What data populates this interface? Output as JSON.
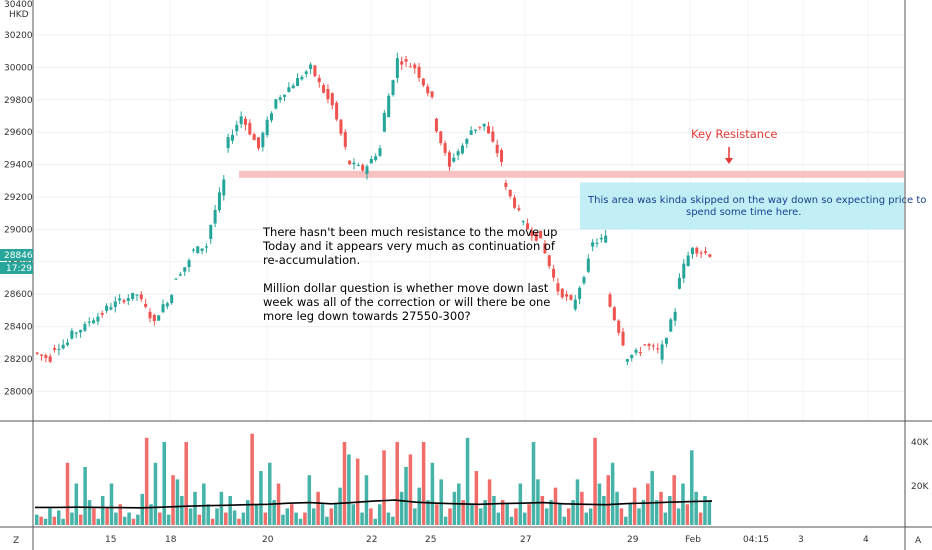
{
  "chart_data": {
    "type": "candlestick",
    "price_scale": {
      "min_label": 28000,
      "max_label": 30200,
      "ticks": [
        "30200",
        "30000",
        "29800",
        "29600",
        "29400",
        "29200",
        "29000",
        "28800",
        "28600",
        "28400",
        "28200",
        "28000"
      ],
      "ylim": [
        27850,
        30300
      ]
    },
    "top_labels": [
      "30400",
      "HKD"
    ],
    "last_price": {
      "value": "28846",
      "timer": "17:29"
    },
    "volume_scale": {
      "ticks": [
        "40K",
        "20K"
      ]
    },
    "x_ticks": [
      "15",
      "18",
      "20",
      "22",
      "25",
      "27",
      "29",
      "Feb",
      "04:15",
      "3",
      "4"
    ],
    "scale_mode_labels": {
      "left": "Z",
      "right": "A"
    },
    "key_level": {
      "price": 29340,
      "label": "Key Resistance"
    },
    "zone": {
      "top": 29290,
      "bottom": 29000,
      "text": [
        "This area was kinda skipped on the way down so expecting price to",
        "spend some time here."
      ]
    },
    "commentary": [
      "There hasn't been much resistance to the move up",
      "Today and it appears very much as continuation of",
      "re-accumulation.",
      "",
      "Million dollar question is whether move down last",
      "week was all of the correction or will there be one",
      "more leg down towards 27550-300?"
    ],
    "price_path": [
      [
        28240,
        28200
      ],
      [
        28260,
        28300
      ],
      [
        28340,
        28400
      ],
      [
        28420,
        28480
      ],
      [
        28500,
        28560
      ],
      [
        28560,
        28600
      ],
      [
        28600,
        28420
      ],
      [
        28450,
        28600
      ],
      [
        28680,
        28800
      ],
      [
        28860,
        28900
      ],
      [
        28940,
        29300
      ],
      [
        29500,
        29700
      ],
      [
        29700,
        29500
      ],
      [
        29520,
        29800
      ],
      [
        29800,
        29900
      ],
      [
        29900,
        30000
      ],
      [
        30000,
        29800
      ],
      [
        29850,
        29500
      ],
      [
        29420,
        29370
      ],
      [
        29360,
        29500
      ],
      [
        29600,
        30050
      ],
      [
        30050,
        30000
      ],
      [
        30000,
        29800
      ],
      [
        29700,
        29380
      ],
      [
        29420,
        29550
      ],
      [
        29600,
        29650
      ],
      [
        29640,
        29420
      ],
      [
        29300,
        29100
      ],
      [
        29060,
        28950
      ],
      [
        29000,
        28700
      ],
      [
        28650,
        28550
      ],
      [
        28500,
        28800
      ],
      [
        28900,
        28950
      ],
      [
        28600,
        28300
      ],
      [
        28200,
        28250
      ],
      [
        28300,
        28250
      ],
      [
        28200,
        28500
      ],
      [
        28650,
        28900
      ],
      [
        28880,
        28846
      ]
    ],
    "volumes": [
      [
        5,
        4,
        3,
        8,
        4,
        7,
        3,
        30,
        6,
        20,
        5,
        28,
        12,
        8,
        3,
        14,
        8,
        20,
        6,
        10,
        4,
        6,
        3,
        5,
        15,
        42,
        10,
        30,
        6,
        40,
        5,
        24,
        22,
        14,
        40,
        8,
        16,
        5,
        20,
        10,
        3,
        8,
        16,
        6,
        14,
        7,
        3,
        6,
        12,
        44,
        10,
        26,
        6,
        30,
        12,
        20,
        5,
        8,
        10,
        6,
        3,
        6,
        24,
        8,
        16,
        10,
        4,
        8,
        10,
        18,
        40,
        34,
        10,
        32,
        6,
        24,
        8,
        3,
        10,
        36,
        6,
        4,
        40,
        16,
        28,
        34,
        8,
        18,
        40,
        12,
        30,
        10,
        22,
        4,
        8,
        16,
        20,
        12,
        42,
        10,
        26,
        8,
        12,
        22,
        14,
        6,
        12,
        10,
        4,
        8,
        20,
        6,
        10,
        40,
        22,
        14,
        8,
        12,
        18,
        10,
        4,
        8,
        12,
        22,
        16,
        6,
        8,
        42,
        20,
        14,
        24,
        30,
        16,
        8,
        4,
        10,
        18,
        8,
        12,
        20,
        26,
        12,
        16,
        6,
        14,
        24,
        8,
        20,
        10,
        36,
        16,
        6,
        14,
        12
      ]
    ],
    "volume_ma": [
      8.5,
      8.5,
      8.6,
      8.5,
      8.4,
      8.3,
      8.6,
      9,
      9.3,
      9.5,
      9.8,
      10,
      10.5,
      10.8,
      10.2,
      10.8,
      11.5,
      12,
      11,
      10.5,
      10.2,
      10,
      10.3,
      10.5,
      10.8,
      10.2,
      10,
      9.8,
      10.3,
      10.6,
      11,
      11.3,
      11.5
    ]
  }
}
